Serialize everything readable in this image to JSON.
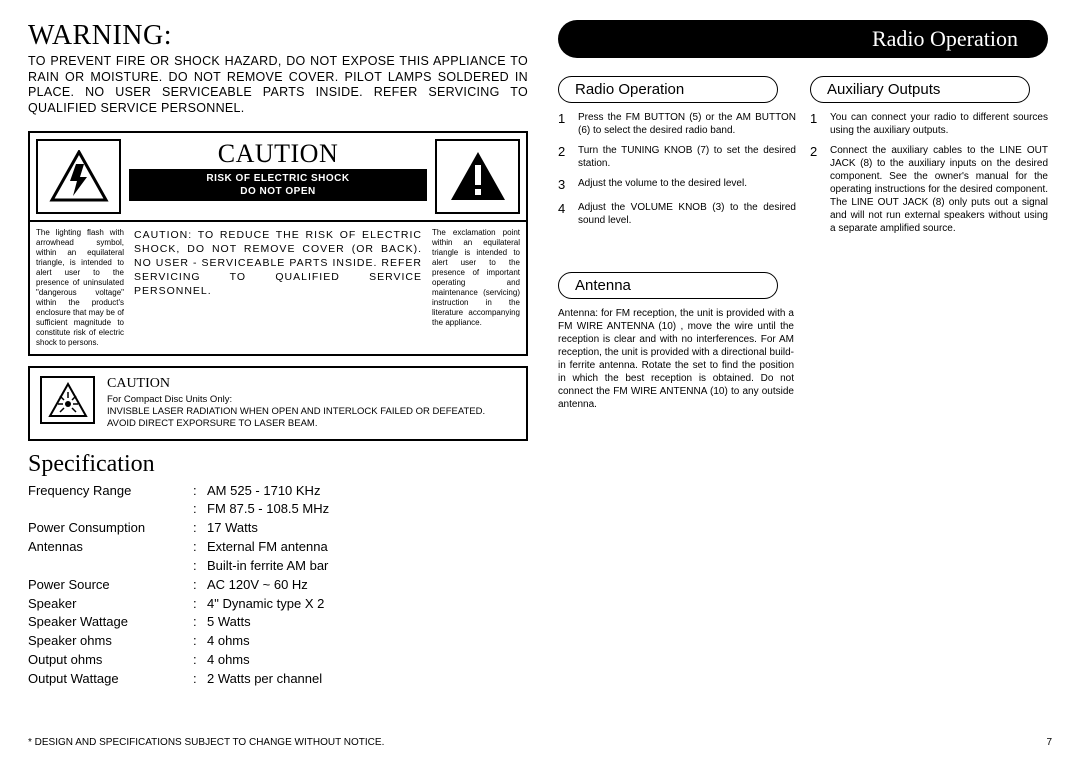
{
  "warning": {
    "title": "WARNING:",
    "body": "TO PREVENT FIRE OR SHOCK HAZARD, DO NOT EXPOSE THIS APPLIANCE TO RAIN OR MOISTURE. DO NOT REMOVE COVER. PILOT LAMPS SOLDERED IN PLACE. NO USER SERVICEABLE PARTS INSIDE. REFER SERVICING TO QUALIFIED SERVICE PERSONNEL."
  },
  "caution_box": {
    "title": "CAUTION",
    "risk_line1": "RISK OF ELECTRIC SHOCK",
    "risk_line2": "DO NOT OPEN",
    "left_small": "The lighting flash with arrowhead symbol, within an equilateral triangle, is intended to alert user to the presence of uninsulated \"dangerous voltage\" within the product's enclosure that may be of sufficient magnitude to constitute risk of electric shock to persons.",
    "center_text": "CAUTION: TO REDUCE THE RISK OF ELECTRIC SHOCK, DO NOT REMOVE COVER (OR BACK). NO USER - SERVICEABLE PARTS INSIDE. REFER SERVICING TO QUALIFIED SERVICE PERSONNEL.",
    "right_small": "The exclamation point within an equilateral triangle is intended to alert user to the presence of important operating and maintenance (servicing) instruction in the literature accompanying the appliance."
  },
  "laser": {
    "title": "CAUTION",
    "line1": "For Compact Disc Units Only:",
    "line2": "INVISBLE LASER RADIATION WHEN OPEN AND INTERLOCK FAILED OR DEFEATED. AVOID DIRECT EXPORSURE TO LASER BEAM."
  },
  "spec": {
    "title": "Specification",
    "rows": [
      {
        "label": "Frequency Range",
        "val": "AM 525 - 1710 KHz"
      },
      {
        "label": "",
        "val": "FM 87.5 - 108.5 MHz"
      },
      {
        "label": "Power Consumption",
        "val": "17 Watts"
      },
      {
        "label": "Antennas",
        "val": "External FM antenna"
      },
      {
        "label": "",
        "val": "Built-in ferrite AM bar"
      },
      {
        "label": "Power Source",
        "val": "AC 120V ~ 60 Hz"
      },
      {
        "label": "Speaker",
        "val": "4\" Dynamic type X 2"
      },
      {
        "label": "Speaker Wattage",
        "val": "5 Watts"
      },
      {
        "label": "Speaker ohms",
        "val": "4 ohms"
      },
      {
        "label": "Output ohms",
        "val": "4 ohms"
      },
      {
        "label": "Output Wattage",
        "val": "2 Watts per channel"
      }
    ]
  },
  "footnote": "* DESIGN AND SPECIFICATIONS SUBJECT TO CHANGE WITHOUT  NOTICE.",
  "pagenum": "7",
  "header_pill": "Radio Operation",
  "radio_op": {
    "title": "Radio Operation",
    "steps": [
      "Press the FM BUTTON (5) or the AM BUTTON (6) to select the desired radio band.",
      "Turn the TUNING KNOB (7) to set the desired station.",
      "Adjust the volume to the desired level.",
      "Adjust the VOLUME KNOB (3) to the desired sound level."
    ]
  },
  "aux": {
    "title": "Auxiliary Outputs",
    "steps": [
      "You can connect your radio to different sources using the auxiliary outputs.",
      "Connect the auxiliary cables to the LINE OUT JACK (8) to the auxiliary inputs on the desired component. See the owner's manual for the operating instructions for the desired component. The LINE OUT JACK (8) only puts out a signal and will not run external speakers without using a  separate amplified source."
    ]
  },
  "antenna": {
    "title": "Antenna",
    "body": "Antenna: for FM reception, the unit is provided with a FM WIRE ANTENNA (10) , move the wire until the reception is clear and with no interferences. For AM reception, the unit is provided with a directional build-in ferrite antenna. Rotate the set to find the position in which the best reception is obtained. Do not connect the FM WIRE ANTENNA (10) to any outside antenna."
  }
}
